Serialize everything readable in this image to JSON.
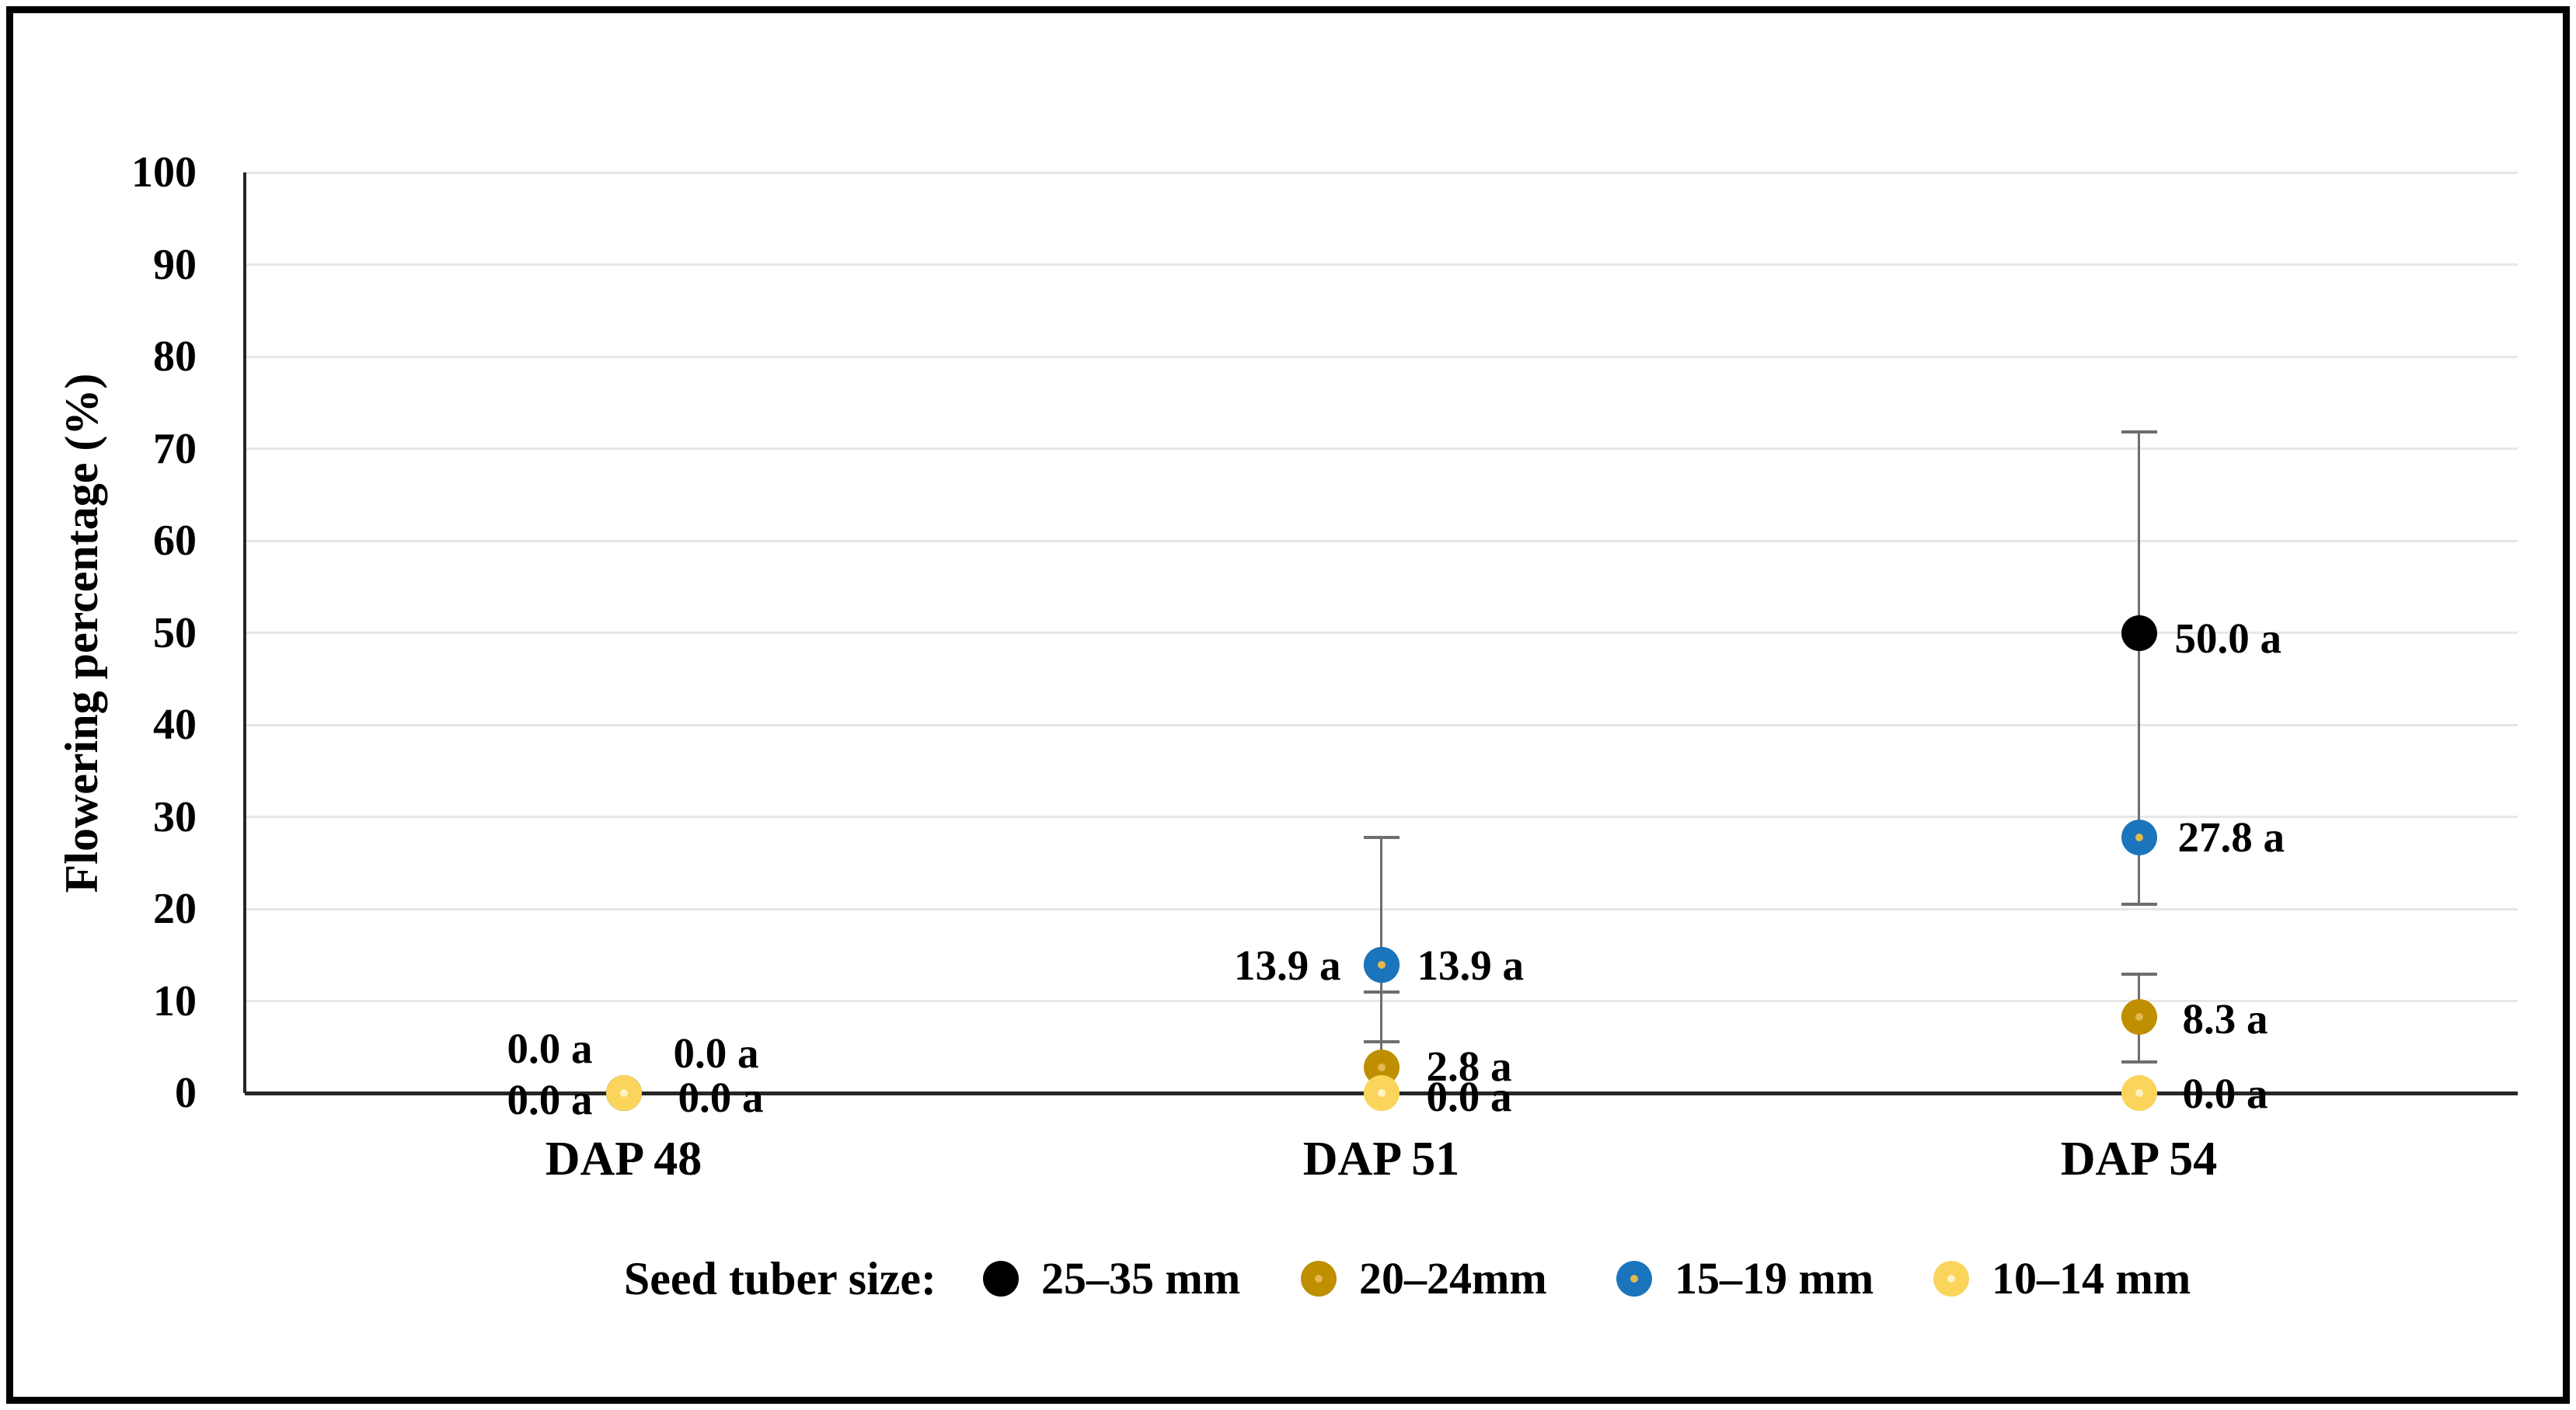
{
  "figure": {
    "background": "#ffffff",
    "border_color": "#000000",
    "grid_color": "#E7E7E7",
    "axis_color": "#262626",
    "error_bar_color": "#6E6E6E"
  },
  "chart_data": {
    "type": "scatter",
    "title": "",
    "xlabel": "",
    "ylabel": "Flowering percentage (%)",
    "ylim": [
      0,
      100
    ],
    "ytick_interval": 10,
    "yticks": [
      0,
      10,
      20,
      30,
      40,
      50,
      60,
      70,
      80,
      90,
      100
    ],
    "categories": [
      "DAP 48",
      "DAP 51",
      "DAP 54"
    ],
    "grid": "horizontal",
    "legend_position": "bottom",
    "legend_title": "Seed tuber size:",
    "series": [
      {
        "name": "25–35 mm",
        "color": "#000000",
        "center": null,
        "values": [
          0.0,
          13.9,
          50.0
        ]
      },
      {
        "name": "20–24mm",
        "color": "#BF8F00",
        "center": "#E3B84E",
        "values": [
          0.0,
          2.8,
          8.3
        ]
      },
      {
        "name": "15–19 mm",
        "color": "#1B75BC",
        "center": "#E3B84E",
        "values": [
          0.0,
          13.9,
          27.8
        ]
      },
      {
        "name": "10–14 mm",
        "color": "#FBD45C",
        "center": "#FFF2C4",
        "values": [
          0.0,
          0.0,
          0.0
        ]
      }
    ],
    "error_bars": [
      {
        "cat": 1,
        "from": 1.5,
        "to": 27.8,
        "caps": [
          27.8,
          11.0,
          5.6
        ]
      },
      {
        "cat": 2,
        "from": 20.5,
        "to": 71.8,
        "caps": [
          71.8,
          20.5
        ]
      },
      {
        "cat": 2,
        "from": 3.4,
        "to": 12.9,
        "caps": [
          12.9,
          3.4
        ]
      }
    ],
    "point_labels": [
      {
        "series": "25–35 mm",
        "cat": 0,
        "text": "0.0 a",
        "align": "right",
        "dx": -40,
        "at": 4.8
      },
      {
        "series": "20–24mm",
        "cat": 0,
        "text": "0.0 a",
        "align": "right",
        "dx": -40,
        "at": -0.8
      },
      {
        "series": "15–19 mm",
        "cat": 0,
        "text": "0.0 a",
        "align": "left",
        "dx": 64,
        "at": 4.3
      },
      {
        "series": "10–14 mm",
        "cat": 0,
        "text": "0.0 a",
        "align": "left",
        "dx": 70,
        "at": -0.5
      },
      {
        "series": "25–35 mm",
        "cat": 1,
        "text": "13.9 a",
        "align": "right",
        "dx": -52,
        "at": 13.8
      },
      {
        "series": "15–19 mm",
        "cat": 1,
        "text": "13.9 a",
        "align": "left",
        "dx": 46,
        "at": 13.8
      },
      {
        "series": "20–24mm",
        "cat": 1,
        "text": "2.8 a",
        "align": "left",
        "dx": 58,
        "at": 2.9
      },
      {
        "series": "10–14 mm",
        "cat": 1,
        "text": "0.0 a",
        "align": "left",
        "dx": 58,
        "at": -0.4
      },
      {
        "series": "25–35 mm",
        "cat": 2,
        "text": "50.0 a",
        "align": "left",
        "dx": 46,
        "at": 49.4
      },
      {
        "series": "15–19 mm",
        "cat": 2,
        "text": "27.8 a",
        "align": "left",
        "dx": 50,
        "at": 27.8
      },
      {
        "series": "20–24mm",
        "cat": 2,
        "text": "8.3 a",
        "align": "left",
        "dx": 56,
        "at": 8.0
      },
      {
        "series": "10–14 mm",
        "cat": 2,
        "text": "0.0 a",
        "align": "left",
        "dx": 56,
        "at": -0.1
      }
    ]
  }
}
